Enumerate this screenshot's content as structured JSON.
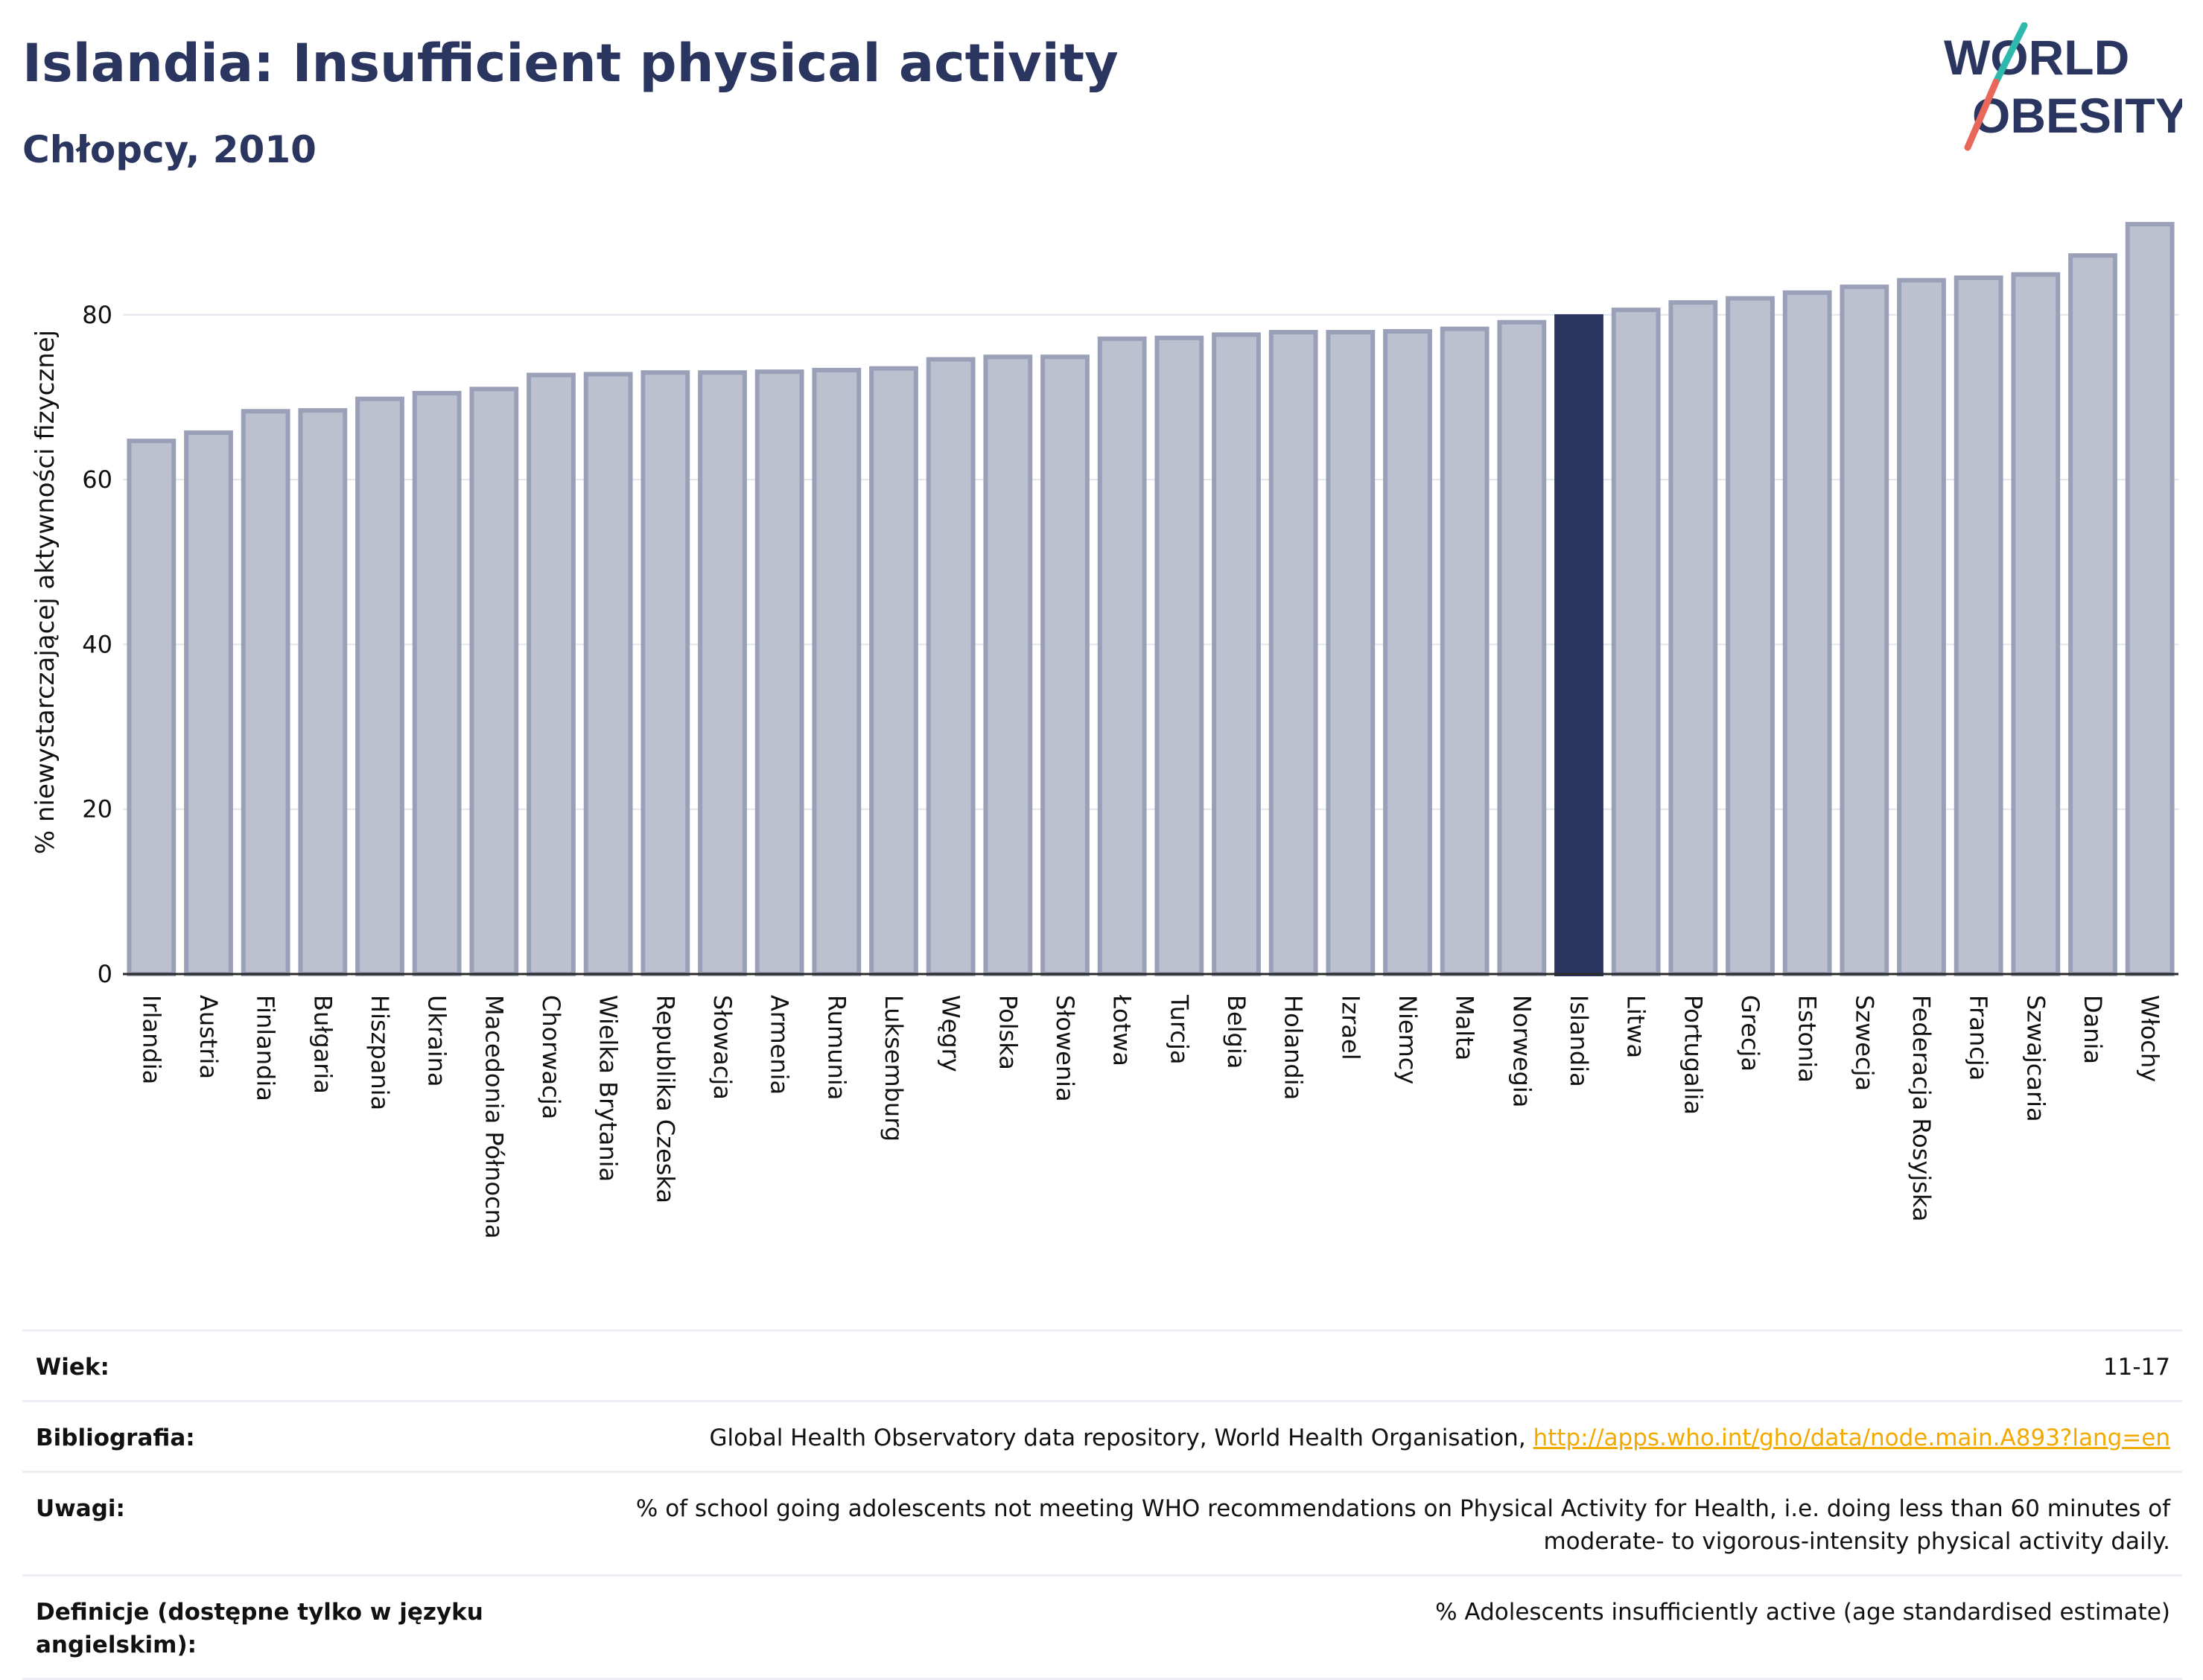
{
  "header": {
    "title": "Islandia: Insufficient physical activity",
    "subtitle": "Chłopcy, 2010"
  },
  "logo": {
    "line1_a": "W",
    "line1_b": "RLD",
    "line2_a": "O",
    "line2_b": "BESITY"
  },
  "colors": {
    "bar": "#bcc0cf",
    "bar_border": "#9aa0b8",
    "highlight": "#2a3560",
    "text": "#2a3560"
  },
  "chart_data": {
    "type": "bar",
    "title": "Islandia: Insufficient physical activity",
    "subtitle": "Chłopcy, 2010",
    "ylabel": "% niewystarczającej aktywności fizycznej",
    "xlabel": "",
    "ylim": [
      0,
      92
    ],
    "yticks": [
      0,
      20,
      40,
      60,
      80
    ],
    "grid": true,
    "highlight": "Islandia",
    "categories": [
      "Irlandia",
      "Austria",
      "Finlandia",
      "Bułgaria",
      "Hiszpania",
      "Ukraina",
      "Macedonia Północna",
      "Chorwacja",
      "Wielka Brytania",
      "Republika Czeska",
      "Słowacja",
      "Armenia",
      "Rumunia",
      "Luksemburg",
      "Węgry",
      "Polska",
      "Słowenia",
      "Łotwa",
      "Turcja",
      "Belgia",
      "Holandia",
      "Izrael",
      "Niemcy",
      "Malta",
      "Norwegia",
      "Islandia",
      "Litwa",
      "Portugalia",
      "Grecja",
      "Estonia",
      "Szwecja",
      "Federacja Rosyjska",
      "Francja",
      "Szwajcaria",
      "Dania",
      "Włochy"
    ],
    "values": [
      64.7,
      65.7,
      68.3,
      68.4,
      69.8,
      70.5,
      71.0,
      72.7,
      72.8,
      73.0,
      73.0,
      73.1,
      73.3,
      73.5,
      74.6,
      74.9,
      74.9,
      77.1,
      77.2,
      77.6,
      77.9,
      77.9,
      78.0,
      78.3,
      79.1,
      79.8,
      80.6,
      81.5,
      82.0,
      82.7,
      83.4,
      84.2,
      84.5,
      84.9,
      87.2,
      91.0
    ]
  },
  "info": {
    "age_label": "Wiek:",
    "age_value": "11-17",
    "bib_label": "Bibliografia:",
    "bib_text": "Global Health Observatory data repository, World Health Organisation, ",
    "bib_link": "http://apps.who.int/gho/data/node.main.A893?lang=en",
    "notes_label": "Uwagi:",
    "notes_value": "% of school going adolescents not meeting WHO recommendations on Physical Activity for Health, i.e. doing less than 60 minutes of moderate- to vigorous-intensity physical activity daily.",
    "def_label": "Definicje (dostępne tylko w języku angielskim):",
    "def_value": "% Adolescents insufficiently active (age standardised estimate)"
  }
}
